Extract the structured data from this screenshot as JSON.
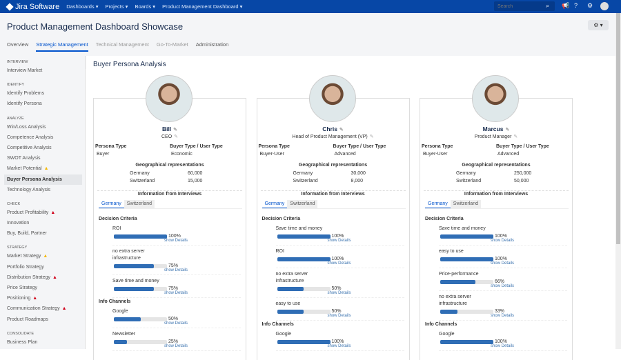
{
  "topbar": {
    "logo": "Jira Software",
    "nav": [
      "Dashboards ▾",
      "Projects ▾",
      "Boards ▾",
      "Product Management Dashboard ▾"
    ],
    "search_placeholder": "Search"
  },
  "header": {
    "title": "Product Management Dashboard Showcase",
    "tabs": [
      "Overview",
      "Strategic Management",
      "Technical Management",
      "Go-To-Market",
      "Administration"
    ],
    "active_tab": "Strategic Management"
  },
  "sidebar": [
    {
      "section": "INTERVIEW",
      "items": [
        {
          "label": "Interview Market"
        }
      ]
    },
    {
      "section": "IDENTIFY",
      "items": [
        {
          "label": "Identify Problems"
        },
        {
          "label": "Identify Persona"
        }
      ]
    },
    {
      "section": "ANALYZE",
      "items": [
        {
          "label": "Win/Loss Analysis"
        },
        {
          "label": "Competence Analysis"
        },
        {
          "label": "Competitive Analysis"
        },
        {
          "label": "SWOT Analysis"
        },
        {
          "label": "Market Potential",
          "warn": "yellow"
        },
        {
          "label": "Buyer Persona Analysis",
          "active": true
        },
        {
          "label": "Technology Analysis"
        }
      ]
    },
    {
      "section": "CHECK",
      "items": [
        {
          "label": "Product Profitability",
          "warn": "red"
        },
        {
          "label": "Innovation"
        },
        {
          "label": "Buy, Build, Partner"
        }
      ]
    },
    {
      "section": "STRATEGY",
      "items": [
        {
          "label": "Market Strategy",
          "warn": "yellow"
        },
        {
          "label": "Portfolio Strategy"
        },
        {
          "label": "Distribution Strategy",
          "warn": "red"
        },
        {
          "label": "Price Strategy"
        },
        {
          "label": "Positioning",
          "warn": "red"
        },
        {
          "label": "Communication Strategy",
          "warn": "red"
        },
        {
          "label": "Product Roadmaps"
        }
      ]
    },
    {
      "section": "CONSOLIDATE",
      "items": [
        {
          "label": "Business Plan"
        }
      ]
    }
  ],
  "main": {
    "title": "Buyer Persona Analysis",
    "labels": {
      "persona_type": "Persona Type",
      "buyer_type": "Buyer Type / User Type",
      "geo": "Geographical representations",
      "info": "Information from Interviews",
      "tab1": "Germany",
      "tab2": "Switzerland",
      "decision": "Decision Criteria",
      "channels": "Info Channels",
      "show": "show Details"
    },
    "personas": [
      {
        "name": "Bill",
        "title": "CEO",
        "persona_type": "Buyer",
        "buyer_type": "Economic",
        "geo": [
          [
            "Germany",
            "60,000"
          ],
          [
            "Switzerland",
            "15,000"
          ]
        ],
        "criteria": [
          [
            "ROI",
            100
          ],
          [
            "no extra server infrastructure",
            75
          ],
          [
            "Save time and money",
            75
          ]
        ],
        "channels": [
          [
            "Google",
            50
          ],
          [
            "Newsletter",
            25
          ]
        ]
      },
      {
        "name": "Chris",
        "title": "Head of Product Management (VP)",
        "persona_type": "Buyer-User",
        "buyer_type": "Advanced",
        "geo": [
          [
            "Germany",
            "30,000"
          ],
          [
            "Switzerland",
            "8,000"
          ]
        ],
        "criteria": [
          [
            "Save time and money",
            100
          ],
          [
            "ROI",
            100
          ],
          [
            "no extra server infrastructure",
            50
          ],
          [
            "easy to use",
            50
          ]
        ],
        "channels": [
          [
            "Google",
            100
          ]
        ]
      },
      {
        "name": "Marcus",
        "title": "Product Manager",
        "persona_type": "Buyer-User",
        "buyer_type": "Advanced",
        "geo": [
          [
            "Germany",
            "250,000"
          ],
          [
            "Switzerland",
            "50,000"
          ]
        ],
        "criteria": [
          [
            "Save time and money",
            100
          ],
          [
            "easy to use",
            100
          ],
          [
            "Price-performance",
            66
          ],
          [
            "no extra server infrastructure",
            33
          ]
        ],
        "channels": [
          [
            "Google",
            100
          ]
        ]
      }
    ]
  },
  "colors": {
    "brand": "#0747a6",
    "bar": "#2f6db5",
    "warn_yellow": "#f5b800",
    "warn_red": "#d0021b"
  }
}
